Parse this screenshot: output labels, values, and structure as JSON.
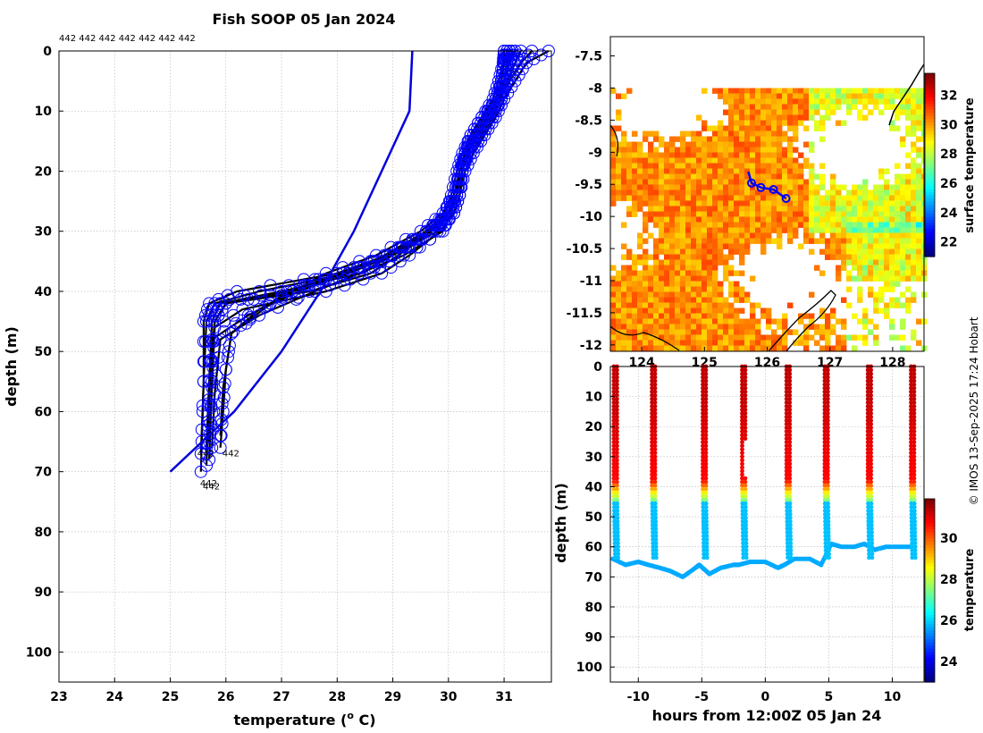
{
  "colors": {
    "profile": "#000000",
    "marker": "#0000ff",
    "climatology": "#0000dd",
    "grid": "#b4b4b4"
  },
  "chart_data": [
    {
      "type": "line",
      "title": "Fish SOOP 05 Jan 2024",
      "xlabel": "temperature (",
      "xlabel_sup": "o",
      "xlabel_end": " C)",
      "ylabel": "depth (m)",
      "xlim": [
        23,
        31.85
      ],
      "ylim": [
        0,
        105
      ],
      "y_reversed": true,
      "xticks": [
        "23",
        "24",
        "25",
        "26",
        "27",
        "28",
        "29",
        "30",
        "31"
      ],
      "yticks": [
        "0",
        "10",
        "20",
        "30",
        "40",
        "50",
        "60",
        "70",
        "80",
        "90",
        "100"
      ],
      "top_label": "442 442 442 442 442 442 442",
      "bottom_labels": [
        "442",
        "442",
        "442"
      ],
      "bottom_label_pairs": [
        [
          25.55,
          67,
          "442"
        ],
        [
          26.0,
          67,
          "442"
        ],
        [
          25.6,
          72,
          "442"
        ],
        [
          25.65,
          72.5,
          "442"
        ]
      ],
      "climatology": {
        "depth": [
          0,
          10,
          20,
          30,
          40,
          50,
          60,
          70
        ],
        "temperature": [
          29.35,
          29.3,
          28.8,
          28.3,
          27.7,
          27.0,
          26.15,
          25.0
        ]
      },
      "profiles": [
        {
          "temperature": [
            31.1,
            31.05,
            31.0,
            30.95,
            30.8,
            30.6,
            30.4,
            30.2,
            30.1,
            30.0,
            29.8,
            29.0,
            28.2,
            26.6,
            25.8,
            25.65,
            25.6,
            25.55
          ],
          "depth": [
            0,
            2,
            5,
            8,
            11,
            14,
            17,
            20,
            24,
            27,
            30,
            34,
            37,
            40,
            42,
            45,
            55,
            67
          ]
        },
        {
          "temperature": [
            31.3,
            31.2,
            31.05,
            30.95,
            30.75,
            30.55,
            30.35,
            30.2,
            30.15,
            30.05,
            29.9,
            29.2,
            28.4,
            27.0,
            25.9,
            25.75,
            25.7,
            25.65
          ],
          "depth": [
            0,
            2,
            5,
            8,
            11,
            14,
            17,
            20,
            24,
            27,
            30,
            34,
            37,
            40,
            42,
            45,
            55,
            66
          ]
        },
        {
          "temperature": [
            31.5,
            31.3,
            31.1,
            30.9,
            30.7,
            30.5,
            30.3,
            30.25,
            30.2,
            30.1,
            29.7,
            29.1,
            28.6,
            27.5,
            26.0,
            25.8,
            25.75,
            25.7
          ],
          "depth": [
            0,
            2,
            5,
            8,
            11,
            14,
            17,
            20,
            24,
            27,
            30,
            34,
            37,
            40,
            42,
            45,
            55,
            68
          ]
        },
        {
          "temperature": [
            31.0,
            31.0,
            30.95,
            30.9,
            30.7,
            30.5,
            30.35,
            30.25,
            30.15,
            30.0,
            29.6,
            28.9,
            28.0,
            26.2,
            25.7,
            25.6,
            25.6,
            25.55
          ],
          "depth": [
            0,
            2,
            5,
            8,
            11,
            14,
            17,
            20,
            24,
            27,
            30,
            34,
            37,
            40,
            42,
            45,
            55,
            70
          ]
        },
        {
          "temperature": [
            31.8,
            31.4,
            31.2,
            31.0,
            30.85,
            30.65,
            30.45,
            30.3,
            30.2,
            30.1,
            29.85,
            29.3,
            28.8,
            27.8,
            26.3,
            25.8,
            25.75,
            25.7
          ],
          "depth": [
            0,
            2,
            5,
            8,
            11,
            14,
            17,
            20,
            24,
            27,
            30,
            34,
            37,
            40,
            43,
            46,
            56,
            65
          ]
        },
        {
          "temperature": [
            31.2,
            31.1,
            31.0,
            30.9,
            30.6,
            30.4,
            30.3,
            30.2,
            30.1,
            29.9,
            29.5,
            28.7,
            27.8,
            27.2,
            26.6,
            26.1,
            25.95,
            25.9
          ],
          "depth": [
            0,
            2,
            5,
            8,
            11,
            14,
            17,
            20,
            24,
            27,
            30,
            34,
            37,
            40,
            43,
            47,
            56,
            64
          ]
        },
        {
          "temperature": [
            31.1,
            31.0,
            30.95,
            30.85,
            30.65,
            30.45,
            30.3,
            30.2,
            30.1,
            30.0,
            29.7,
            29.0,
            28.4,
            27.6,
            26.6,
            25.9,
            25.8,
            25.75
          ],
          "depth": [
            0,
            2,
            5,
            8,
            11,
            14,
            17,
            20,
            24,
            27,
            30,
            34,
            37,
            40,
            44,
            48,
            57,
            66
          ]
        },
        {
          "temperature": [
            31.0,
            30.98,
            30.9,
            30.8,
            30.6,
            30.4,
            30.25,
            30.15,
            30.05,
            29.95,
            29.6,
            28.85,
            28.2,
            27.3,
            26.4,
            25.75,
            25.7,
            25.65
          ],
          "depth": [
            0,
            2,
            5,
            8,
            11,
            14,
            17,
            20,
            24,
            27,
            30,
            34,
            37,
            40,
            44,
            48,
            58,
            69
          ]
        },
        {
          "temperature": [
            31.05,
            31.0,
            30.95,
            30.85,
            30.7,
            30.5,
            30.35,
            30.2,
            30.1,
            30.0,
            29.65,
            28.95,
            28.1,
            27.1,
            26.1,
            26.0,
            25.95,
            25.9
          ],
          "depth": [
            0,
            2,
            5,
            8,
            11,
            14,
            17,
            20,
            24,
            27,
            30,
            34,
            37,
            40,
            47,
            53,
            60,
            66
          ]
        },
        {
          "temperature": [
            31.15,
            31.1,
            31.0,
            30.9,
            30.7,
            30.5,
            30.3,
            30.2,
            30.1,
            30.0,
            29.7,
            28.9,
            28.1,
            27.2,
            26.0,
            25.8,
            25.7,
            25.65
          ],
          "depth": [
            0,
            2,
            5,
            8,
            11,
            14,
            17,
            20,
            24,
            27,
            30,
            34,
            37,
            40,
            42,
            45,
            55,
            67
          ]
        }
      ]
    },
    {
      "type": "heatmap",
      "title": "",
      "colorbar_label": "surface temperature",
      "colorbar_range": [
        21,
        33.5
      ],
      "colorbar_ticks": [
        "22",
        "24",
        "26",
        "28",
        "30",
        "32"
      ],
      "xlim": [
        123.5,
        128.5
      ],
      "ylim": [
        -12.1,
        -7.2
      ],
      "yticks": [
        "-7.5",
        "-8",
        "-8.5",
        "-9",
        "-9.5",
        "-10",
        "-10.5",
        "-11",
        "-11.5",
        "-12"
      ],
      "xticks": [
        "124",
        "125",
        "126",
        "127",
        "128"
      ],
      "track": {
        "lon": [
          125.7,
          125.75,
          125.9,
          126.1,
          126.3
        ],
        "lat": [
          -9.3,
          -9.48,
          -9.55,
          -9.58,
          -9.72
        ]
      }
    },
    {
      "type": "scatter",
      "xlabel": "hours from 12:00Z 05 Jan 24",
      "ylabel": "depth (m)",
      "xlim": [
        -12.2,
        12.5
      ],
      "ylim": [
        0,
        105
      ],
      "y_reversed": true,
      "xticks": [
        "-10",
        "-5",
        "0",
        "5",
        "10"
      ],
      "yticks": [
        "0",
        "10",
        "20",
        "30",
        "40",
        "50",
        "60",
        "70",
        "80",
        "90",
        "100"
      ],
      "colorbar_label": "temperature",
      "colorbar_range": [
        23,
        31.9
      ],
      "colorbar_ticks": [
        "24",
        "26",
        "28",
        "30"
      ],
      "casts_hours": [
        -11.8,
        -8.8,
        -4.8,
        -1.7,
        1.8,
        4.8,
        8.2,
        11.6
      ],
      "bottom_depth_hours": [
        -12,
        -11,
        -10,
        -9.2,
        -8.3,
        -7.5,
        -6.5,
        -5.5,
        -5.2,
        -4.4,
        -3.5,
        -2.5,
        -2.1,
        -1.2,
        0,
        1,
        1.5,
        2.3,
        3.5,
        4.4,
        5.2,
        6,
        7,
        7.8,
        8.6,
        9.5,
        10.5,
        11.5
      ],
      "bottom_depth_values": [
        64,
        66,
        65,
        66,
        67,
        68,
        70,
        67,
        66,
        69,
        67,
        66,
        66,
        65,
        65,
        67,
        66,
        64,
        64,
        66,
        59,
        60,
        60,
        59,
        61,
        60,
        60,
        60
      ]
    }
  ],
  "footer": {
    "credit": "© IMOS 13-Sep-2025 17:24 Hobart"
  }
}
